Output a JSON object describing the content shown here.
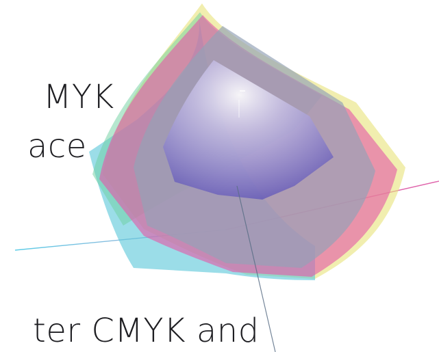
{
  "captions": {
    "line_1": "MYK",
    "line_2": "ace",
    "line_3": "ter CMYK and"
  },
  "colors": {
    "background": "#ffffff",
    "text": "#1e1e22",
    "gamut_yellow": "#e8e27a",
    "gamut_magenta": "#e35aa8",
    "gamut_cyan": "#58c6d8",
    "gamut_green": "#6ecfa0",
    "inner_gamut": "#8b7fc8",
    "axis_cyan": "#49c7e4",
    "axis_magenta": "#d9479b",
    "axis_gray": "#5a6e86"
  }
}
